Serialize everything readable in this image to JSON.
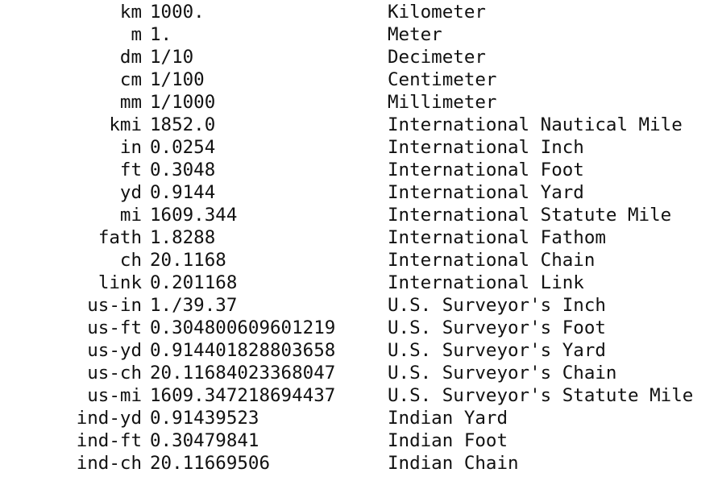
{
  "units": [
    {
      "abbr": "km",
      "factor": "1000.",
      "name": "Kilometer"
    },
    {
      "abbr": "m",
      "factor": "1.",
      "name": "Meter"
    },
    {
      "abbr": "dm",
      "factor": "1/10",
      "name": "Decimeter"
    },
    {
      "abbr": "cm",
      "factor": "1/100",
      "name": "Centimeter"
    },
    {
      "abbr": "mm",
      "factor": "1/1000",
      "name": "Millimeter"
    },
    {
      "abbr": "kmi",
      "factor": "1852.0",
      "name": "International Nautical Mile"
    },
    {
      "abbr": "in",
      "factor": "0.0254",
      "name": "International Inch"
    },
    {
      "abbr": "ft",
      "factor": "0.3048",
      "name": "International Foot"
    },
    {
      "abbr": "yd",
      "factor": "0.9144",
      "name": "International Yard"
    },
    {
      "abbr": "mi",
      "factor": "1609.344",
      "name": "International Statute Mile"
    },
    {
      "abbr": "fath",
      "factor": "1.8288",
      "name": "International Fathom"
    },
    {
      "abbr": "ch",
      "factor": "20.1168",
      "name": "International Chain"
    },
    {
      "abbr": "link",
      "factor": "0.201168",
      "name": "International Link"
    },
    {
      "abbr": "us-in",
      "factor": "1./39.37",
      "name": "U.S. Surveyor's Inch"
    },
    {
      "abbr": "us-ft",
      "factor": "0.304800609601219",
      "name": "U.S. Surveyor's Foot"
    },
    {
      "abbr": "us-yd",
      "factor": "0.914401828803658",
      "name": "U.S. Surveyor's Yard"
    },
    {
      "abbr": "us-ch",
      "factor": "20.11684023368047",
      "name": "U.S. Surveyor's Chain"
    },
    {
      "abbr": "us-mi",
      "factor": "1609.347218694437",
      "name": "U.S. Surveyor's Statute Mile"
    },
    {
      "abbr": "ind-yd",
      "factor": "0.91439523",
      "name": "Indian Yard"
    },
    {
      "abbr": "ind-ft",
      "factor": "0.30479841",
      "name": "Indian Foot"
    },
    {
      "abbr": "ind-ch",
      "factor": "20.11669506",
      "name": "Indian Chain"
    }
  ]
}
